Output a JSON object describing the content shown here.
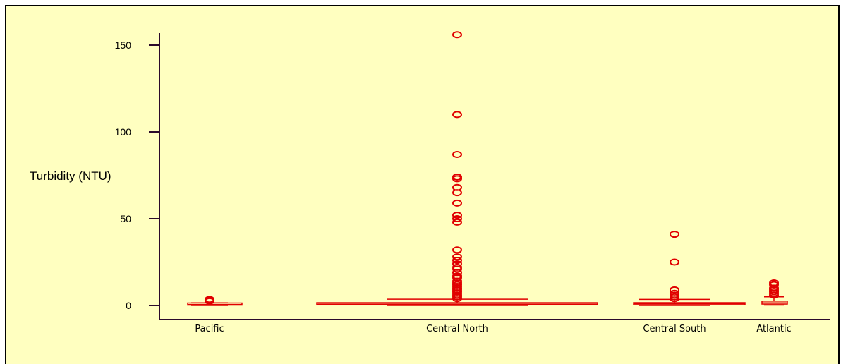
{
  "chart_data": {
    "type": "box",
    "ylabel": "Turbidity (NTU)",
    "ylim": [
      0,
      155
    ],
    "yticks": [
      0,
      50,
      100,
      150
    ],
    "colors": {
      "box": "#e00000",
      "axis": "#2b0a2b",
      "background": "#ffffc0"
    },
    "categories": [
      "Pacific",
      "Central North",
      "Central South",
      "Atlantic"
    ],
    "boxes": [
      {
        "name": "Pacific",
        "min": 0,
        "q1": 0.2,
        "median": 0.5,
        "q3": 0.9,
        "max": 1.5,
        "outliers": [
          2.5,
          3.0,
          3.5
        ]
      },
      {
        "name": "Central North",
        "min": 0,
        "q1": 0.3,
        "median": 0.8,
        "q3": 1.6,
        "max": 3.6,
        "outliers": [
          4,
          5,
          6,
          7,
          8,
          9,
          10,
          11,
          12,
          13,
          14,
          16,
          17,
          19,
          21,
          22,
          24,
          26,
          28,
          32,
          48,
          50,
          52,
          59,
          65,
          68,
          73,
          74,
          87,
          110,
          156
        ]
      },
      {
        "name": "Central South",
        "min": 0,
        "q1": 0.4,
        "median": 1.0,
        "q3": 1.5,
        "max": 3.5,
        "outliers": [
          4,
          5,
          6,
          7,
          9,
          25,
          41
        ]
      },
      {
        "name": "Atlantic",
        "min": 0.2,
        "q1": 0.8,
        "median": 1.5,
        "q3": 2.5,
        "max": 5,
        "outliers": [
          6,
          7,
          8,
          9,
          10,
          12,
          13
        ]
      }
    ]
  }
}
